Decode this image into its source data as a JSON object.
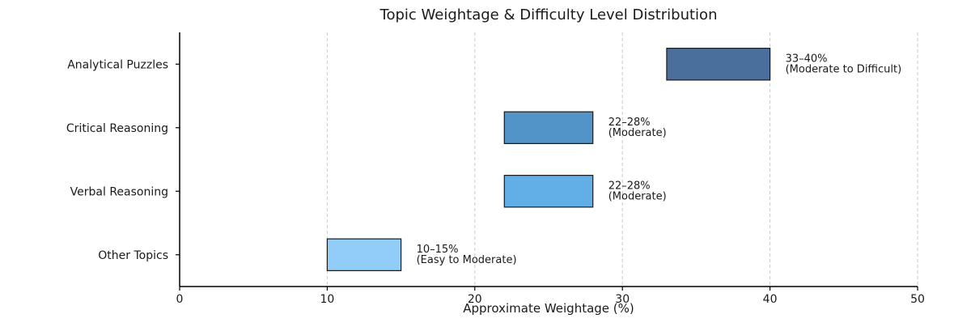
{
  "chart_data": {
    "type": "bar",
    "orientation": "horizontal",
    "title": "Topic Weightage & Difficulty Level Distribution",
    "xlabel": "Approximate Weightage (%)",
    "ylabel": "",
    "xlim": [
      0,
      50
    ],
    "xticks": [
      0,
      10,
      20,
      30,
      40,
      50
    ],
    "grid": "vertical dashed",
    "categories": [
      "Analytical Puzzles",
      "Critical Reasoning",
      "Verbal Reasoning",
      "Other Topics"
    ],
    "ranges": [
      [
        33,
        40
      ],
      [
        22,
        28
      ],
      [
        22,
        28
      ],
      [
        10,
        15
      ]
    ],
    "labels": [
      [
        "33–40%",
        "(Moderate to Difficult)"
      ],
      [
        "22–28%",
        "(Moderate)"
      ],
      [
        "22–28%",
        "(Moderate)"
      ],
      [
        "10–15%",
        "(Easy to Moderate)"
      ]
    ],
    "colors": [
      "#4b6f9c",
      "#5294c7",
      "#62aee6",
      "#91cdf7"
    ]
  }
}
